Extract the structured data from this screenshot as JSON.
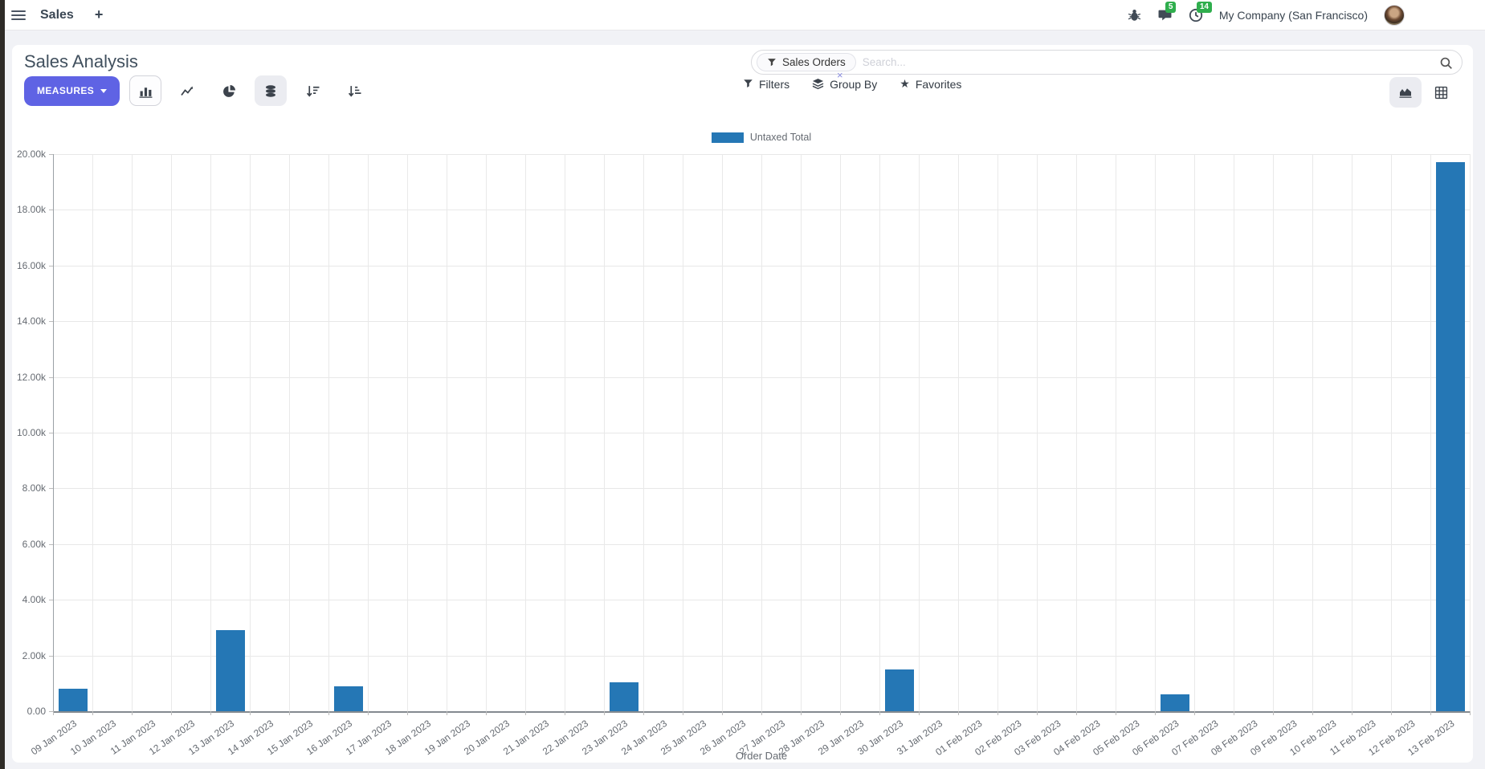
{
  "navbar": {
    "app_name": "Sales",
    "new_label": "+",
    "chat_badge": "5",
    "activity_badge": "14",
    "company": "My Company (San Francisco)"
  },
  "panel": {
    "title": "Sales Analysis",
    "measures_label": "MEASURES",
    "search": {
      "facet": "Sales Orders",
      "placeholder": "Search...",
      "remove": "×"
    },
    "filters_label": "Filters",
    "groupby_label": "Group By",
    "favorites_label": "Favorites"
  },
  "icons": {
    "star": "★"
  },
  "colors": {
    "accent": "#5f63e4",
    "bar_blue": "#2577b5",
    "badge_green": "#2fae4d"
  },
  "chart_data": {
    "type": "bar",
    "title": "",
    "xlabel": "Order Date",
    "ylabel": "",
    "ylim": [
      0,
      20000
    ],
    "grid": true,
    "legend_position": "top",
    "ytick_labels": [
      "20.00k",
      "18.00k",
      "16.00k",
      "14.00k",
      "12.00k",
      "10.00k",
      "8.00k",
      "6.00k",
      "4.00k",
      "2.00k",
      "0.00"
    ],
    "categories": [
      "09 Jan 2023",
      "10 Jan 2023",
      "11 Jan 2023",
      "12 Jan 2023",
      "13 Jan 2023",
      "14 Jan 2023",
      "15 Jan 2023",
      "16 Jan 2023",
      "17 Jan 2023",
      "18 Jan 2023",
      "19 Jan 2023",
      "20 Jan 2023",
      "21 Jan 2023",
      "22 Jan 2023",
      "23 Jan 2023",
      "24 Jan 2023",
      "25 Jan 2023",
      "26 Jan 2023",
      "27 Jan 2023",
      "28 Jan 2023",
      "29 Jan 2023",
      "30 Jan 2023",
      "31 Jan 2023",
      "01 Feb 2023",
      "02 Feb 2023",
      "03 Feb 2023",
      "04 Feb 2023",
      "05 Feb 2023",
      "06 Feb 2023",
      "07 Feb 2023",
      "08 Feb 2023",
      "09 Feb 2023",
      "10 Feb 2023",
      "11 Feb 2023",
      "12 Feb 2023",
      "13 Feb 2023"
    ],
    "series": [
      {
        "name": "Untaxed Total",
        "color": "#2577b5",
        "values": [
          800,
          0,
          0,
          0,
          2900,
          0,
          0,
          900,
          0,
          0,
          0,
          0,
          0,
          0,
          1050,
          0,
          0,
          0,
          0,
          0,
          0,
          1500,
          0,
          0,
          0,
          0,
          0,
          0,
          600,
          0,
          0,
          0,
          0,
          0,
          0,
          19700
        ]
      }
    ]
  }
}
